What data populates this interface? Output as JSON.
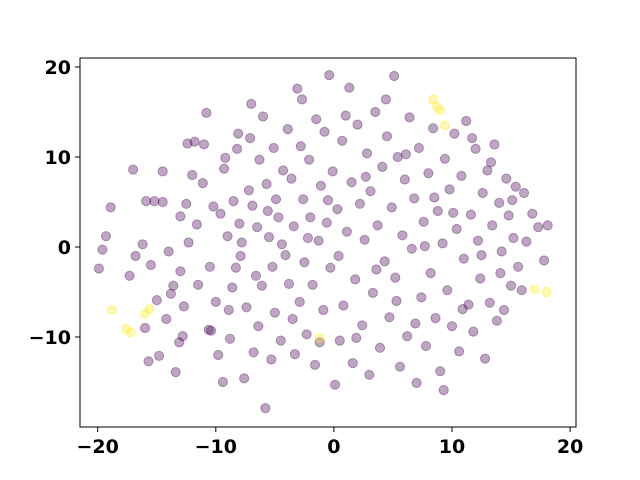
{
  "chart_data": {
    "type": "scatter",
    "title": "",
    "xlabel": "",
    "ylabel": "",
    "xlim": [
      -21.5,
      20.5
    ],
    "ylim": [
      -20,
      21
    ],
    "x_ticks": [
      -20,
      -10,
      0,
      10,
      20
    ],
    "x_tick_labels": [
      "−20",
      "−10",
      "0",
      "10",
      "20"
    ],
    "y_ticks": [
      -10,
      0,
      10,
      20
    ],
    "y_tick_labels": [
      "−10",
      "0",
      "10",
      "20"
    ],
    "grid": false,
    "legend": "none",
    "colors": {
      "class_0": "#440154",
      "class_1": "#fde725"
    },
    "marker_alpha": 0.35,
    "series": [
      {
        "points": [
          [
            -19.9,
            -2.4
          ],
          [
            -19.6,
            -0.3
          ],
          [
            -19.3,
            1.2
          ],
          [
            -18.9,
            4.4
          ],
          [
            -17.3,
            -3.2
          ],
          [
            -16.8,
            -1.0
          ],
          [
            -16.2,
            0.3
          ],
          [
            -15.9,
            5.1
          ],
          [
            -15.7,
            -12.7
          ],
          [
            -15.5,
            -2.0
          ],
          [
            -15.2,
            5.1
          ],
          [
            -14.8,
            -12.1
          ],
          [
            -14.5,
            5.0
          ],
          [
            -14.5,
            8.4
          ],
          [
            -14.2,
            -8.0
          ],
          [
            -14.0,
            -0.5
          ],
          [
            -13.8,
            -5.2
          ],
          [
            -13.6,
            -4.3
          ],
          [
            -13.4,
            -13.9
          ],
          [
            -13.1,
            -10.6
          ],
          [
            -13.0,
            -2.7
          ],
          [
            -12.8,
            -9.9
          ],
          [
            -12.7,
            -6.6
          ],
          [
            -12.5,
            4.8
          ],
          [
            -12.4,
            11.5
          ],
          [
            -12.3,
            0.5
          ],
          [
            -11.8,
            11.7
          ],
          [
            -11.6,
            2.5
          ],
          [
            -11.1,
            7.1
          ],
          [
            -11.0,
            11.4
          ],
          [
            -10.6,
            -9.2
          ],
          [
            -10.5,
            -2.2
          ],
          [
            -10.4,
            -9.3
          ],
          [
            -10.2,
            4.5
          ],
          [
            -10.0,
            -6.1
          ],
          [
            -9.8,
            -12.0
          ],
          [
            -9.6,
            3.7
          ],
          [
            -9.4,
            -15.0
          ],
          [
            -9.3,
            8.7
          ],
          [
            -9.0,
            1.2
          ],
          [
            -8.8,
            -10.2
          ],
          [
            -8.6,
            -4.5
          ],
          [
            -8.5,
            5.1
          ],
          [
            -8.3,
            -2.3
          ],
          [
            -8.2,
            10.9
          ],
          [
            -8.1,
            12.6
          ],
          [
            -8.0,
            2.6
          ],
          [
            -7.8,
            0.5
          ],
          [
            -7.6,
            -14.6
          ],
          [
            -7.4,
            -6.7
          ],
          [
            -7.2,
            6.3
          ],
          [
            -7.1,
            12.1
          ],
          [
            -6.9,
            4.6
          ],
          [
            -6.8,
            -11.7
          ],
          [
            -6.5,
            2.2
          ],
          [
            -6.4,
            -8.8
          ],
          [
            -6.3,
            9.7
          ],
          [
            -6.1,
            -4.3
          ],
          [
            -6.0,
            14.5
          ],
          [
            -5.8,
            -17.9
          ],
          [
            -5.7,
            7.0
          ],
          [
            -5.5,
            1.1
          ],
          [
            -5.3,
            -12.5
          ],
          [
            -5.2,
            -2.2
          ],
          [
            -5.1,
            11.0
          ],
          [
            -5.0,
            -7.3
          ],
          [
            -4.9,
            5.3
          ],
          [
            -4.7,
            3.3
          ],
          [
            -4.5,
            -10.4
          ],
          [
            -4.3,
            8.5
          ],
          [
            -4.1,
            -0.9
          ],
          [
            -3.9,
            13.1
          ],
          [
            -3.8,
            -4.1
          ],
          [
            -3.6,
            7.6
          ],
          [
            -3.4,
            2.3
          ],
          [
            -3.3,
            -11.9
          ],
          [
            -3.1,
            17.6
          ],
          [
            -2.9,
            -6.1
          ],
          [
            -2.8,
            11.2
          ],
          [
            -2.6,
            5.3
          ],
          [
            -2.5,
            -1.7
          ],
          [
            -2.3,
            -9.7
          ],
          [
            -2.1,
            9.7
          ],
          [
            -2.0,
            3.3
          ],
          [
            -1.8,
            -4.2
          ],
          [
            -1.6,
            -13.1
          ],
          [
            -1.5,
            14.2
          ],
          [
            -1.3,
            0.7
          ],
          [
            -1.1,
            6.8
          ],
          [
            -0.9,
            -7.0
          ],
          [
            -0.8,
            12.8
          ],
          [
            -0.6,
            2.7
          ],
          [
            -0.4,
            19.1
          ],
          [
            -0.3,
            -2.3
          ],
          [
            -0.1,
            8.4
          ],
          [
            0.1,
            -15.3
          ],
          [
            0.3,
            4.2
          ],
          [
            0.5,
            -10.4
          ],
          [
            0.7,
            11.8
          ],
          [
            0.8,
            -6.5
          ],
          [
            1.1,
            1.7
          ],
          [
            1.3,
            17.7
          ],
          [
            1.5,
            7.2
          ],
          [
            1.6,
            -12.9
          ],
          [
            1.8,
            -3.6
          ],
          [
            2.0,
            13.6
          ],
          [
            2.2,
            4.8
          ],
          [
            2.4,
            -8.7
          ],
          [
            2.6,
            0.8
          ],
          [
            2.8,
            10.4
          ],
          [
            3.0,
            -14.2
          ],
          [
            3.1,
            6.2
          ],
          [
            3.3,
            -5.1
          ],
          [
            3.5,
            15.0
          ],
          [
            3.7,
            2.4
          ],
          [
            3.9,
            -11.2
          ],
          [
            4.1,
            8.9
          ],
          [
            4.3,
            -1.6
          ],
          [
            4.5,
            12.3
          ],
          [
            4.7,
            -7.8
          ],
          [
            4.9,
            4.4
          ],
          [
            5.1,
            19.0
          ],
          [
            5.2,
            -3.4
          ],
          [
            5.4,
            10.0
          ],
          [
            5.6,
            -13.3
          ],
          [
            5.8,
            1.3
          ],
          [
            6.0,
            7.5
          ],
          [
            6.2,
            -9.9
          ],
          [
            6.4,
            14.4
          ],
          [
            6.6,
            -0.2
          ],
          [
            6.8,
            5.4
          ],
          [
            7.0,
            -15.1
          ],
          [
            7.2,
            11.0
          ],
          [
            7.4,
            -5.6
          ],
          [
            7.6,
            2.8
          ],
          [
            7.8,
            -11.0
          ],
          [
            8.0,
            8.2
          ],
          [
            8.2,
            -2.9
          ],
          [
            8.4,
            13.2
          ],
          [
            8.6,
            -7.9
          ],
          [
            8.8,
            4.0
          ],
          [
            9.0,
            -13.8
          ],
          [
            9.2,
            0.4
          ],
          [
            9.4,
            9.8
          ],
          [
            9.6,
            -4.8
          ],
          [
            9.8,
            6.4
          ],
          [
            10.0,
            -8.8
          ],
          [
            10.2,
            12.6
          ],
          [
            10.4,
            2.0
          ],
          [
            10.6,
            -11.6
          ],
          [
            10.8,
            7.9
          ],
          [
            11.0,
            -1.3
          ],
          [
            11.2,
            14.0
          ],
          [
            11.4,
            -6.4
          ],
          [
            11.6,
            3.6
          ],
          [
            11.8,
            -9.4
          ],
          [
            12.0,
            10.9
          ],
          [
            12.2,
            0.7
          ],
          [
            12.4,
            -3.5
          ],
          [
            12.6,
            6.0
          ],
          [
            12.8,
            -12.4
          ],
          [
            13.0,
            8.5
          ],
          [
            13.2,
            -6.2
          ],
          [
            13.4,
            2.4
          ],
          [
            13.6,
            11.4
          ],
          [
            13.8,
            -8.2
          ],
          [
            14.0,
            4.9
          ],
          [
            14.2,
            -0.5
          ],
          [
            14.4,
            -7.0
          ],
          [
            14.6,
            7.6
          ],
          [
            14.8,
            3.5
          ],
          [
            15.0,
            -4.3
          ],
          [
            15.2,
            1.0
          ],
          [
            15.4,
            6.7
          ],
          [
            15.6,
            -2.2
          ],
          [
            15.9,
            -4.8
          ],
          [
            16.3,
            0.6
          ],
          [
            16.8,
            3.7
          ],
          [
            17.3,
            2.2
          ],
          [
            17.8,
            -1.5
          ],
          [
            18.1,
            2.4
          ],
          [
            -17.0,
            8.6
          ],
          [
            -16.0,
            -9.0
          ],
          [
            -15.0,
            -5.9
          ],
          [
            -13.0,
            3.4
          ],
          [
            -12.0,
            8.0
          ],
          [
            -11.5,
            -4.2
          ],
          [
            -10.8,
            14.9
          ],
          [
            -9.2,
            9.9
          ],
          [
            -8.9,
            -7.0
          ],
          [
            -7.9,
            -1.0
          ],
          [
            -7.0,
            15.9
          ],
          [
            -6.6,
            -3.2
          ],
          [
            -5.6,
            4.0
          ],
          [
            -4.4,
            0.3
          ],
          [
            -3.5,
            -8.0
          ],
          [
            -2.7,
            16.4
          ],
          [
            -2.2,
            1.0
          ],
          [
            -1.2,
            -10.6
          ],
          [
            -0.5,
            5.2
          ],
          [
            0.4,
            -1.0
          ],
          [
            1.0,
            14.6
          ],
          [
            1.9,
            -10.1
          ],
          [
            2.7,
            7.8
          ],
          [
            3.6,
            -2.5
          ],
          [
            4.4,
            16.4
          ],
          [
            5.3,
            -6.0
          ],
          [
            6.1,
            10.3
          ],
          [
            6.9,
            -8.5
          ],
          [
            7.7,
            0.1
          ],
          [
            8.5,
            5.5
          ],
          [
            9.3,
            -15.9
          ],
          [
            10.1,
            3.8
          ],
          [
            10.9,
            -6.9
          ],
          [
            11.7,
            12.1
          ],
          [
            12.5,
            -0.9
          ],
          [
            13.3,
            9.4
          ],
          [
            14.1,
            -2.9
          ],
          [
            15.1,
            5.2
          ],
          [
            16.1,
            6.0
          ]
        ],
        "color": "#440154"
      },
      {
        "points": [
          [
            -18.8,
            -7.0
          ],
          [
            -17.6,
            -9.1
          ],
          [
            -17.2,
            -9.5
          ],
          [
            -16.0,
            -7.4
          ],
          [
            -15.6,
            -6.9
          ],
          [
            -1.2,
            -10.1
          ],
          [
            8.4,
            16.4
          ],
          [
            8.7,
            15.6
          ],
          [
            9.0,
            15.2
          ],
          [
            9.4,
            13.5
          ],
          [
            17.0,
            -4.7
          ],
          [
            18.0,
            -5.0
          ]
        ],
        "color": "#fde725"
      }
    ]
  }
}
